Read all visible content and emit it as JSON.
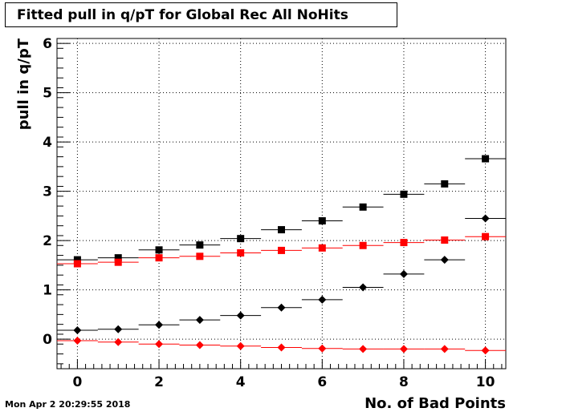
{
  "title": "Fitted pull in q/pT for Global Rec All NoHits",
  "timestamp": "Mon Apr  2 20:29:55 2018",
  "colors": {
    "black": "#000000",
    "red": "#ff0000",
    "grid": "#000000"
  },
  "chart_data": {
    "type": "scatter",
    "xlabel": "No. of Bad Points",
    "ylabel": "pull in q/pT",
    "xlim": [
      -0.5,
      10.5
    ],
    "ylim": [
      -0.6,
      6.1
    ],
    "x_ticks": [
      0,
      2,
      4,
      6,
      8,
      10
    ],
    "y_ticks": [
      0,
      1,
      2,
      3,
      4,
      5,
      6
    ],
    "grid": true,
    "x": [
      0,
      1,
      2,
      3,
      4,
      5,
      6,
      7,
      8,
      9,
      10
    ],
    "x_error": 0.5,
    "series": [
      {
        "color": "#000000",
        "marker": "square",
        "values": [
          1.61,
          1.65,
          1.81,
          1.91,
          2.04,
          2.22,
          2.4,
          2.68,
          2.94,
          3.15,
          3.66
        ]
      },
      {
        "color": "#ff0000",
        "marker": "square",
        "values": [
          1.53,
          1.56,
          1.65,
          1.68,
          1.75,
          1.8,
          1.85,
          1.9,
          1.96,
          2.01,
          2.08
        ]
      },
      {
        "color": "#000000",
        "marker": "diamond",
        "values": [
          0.18,
          0.2,
          0.29,
          0.39,
          0.48,
          0.64,
          0.8,
          1.05,
          1.32,
          1.61,
          2.45
        ]
      },
      {
        "color": "#ff0000",
        "marker": "diamond",
        "values": [
          -0.03,
          -0.06,
          -0.1,
          -0.12,
          -0.14,
          -0.17,
          -0.19,
          -0.2,
          -0.2,
          -0.2,
          -0.23
        ]
      }
    ]
  }
}
